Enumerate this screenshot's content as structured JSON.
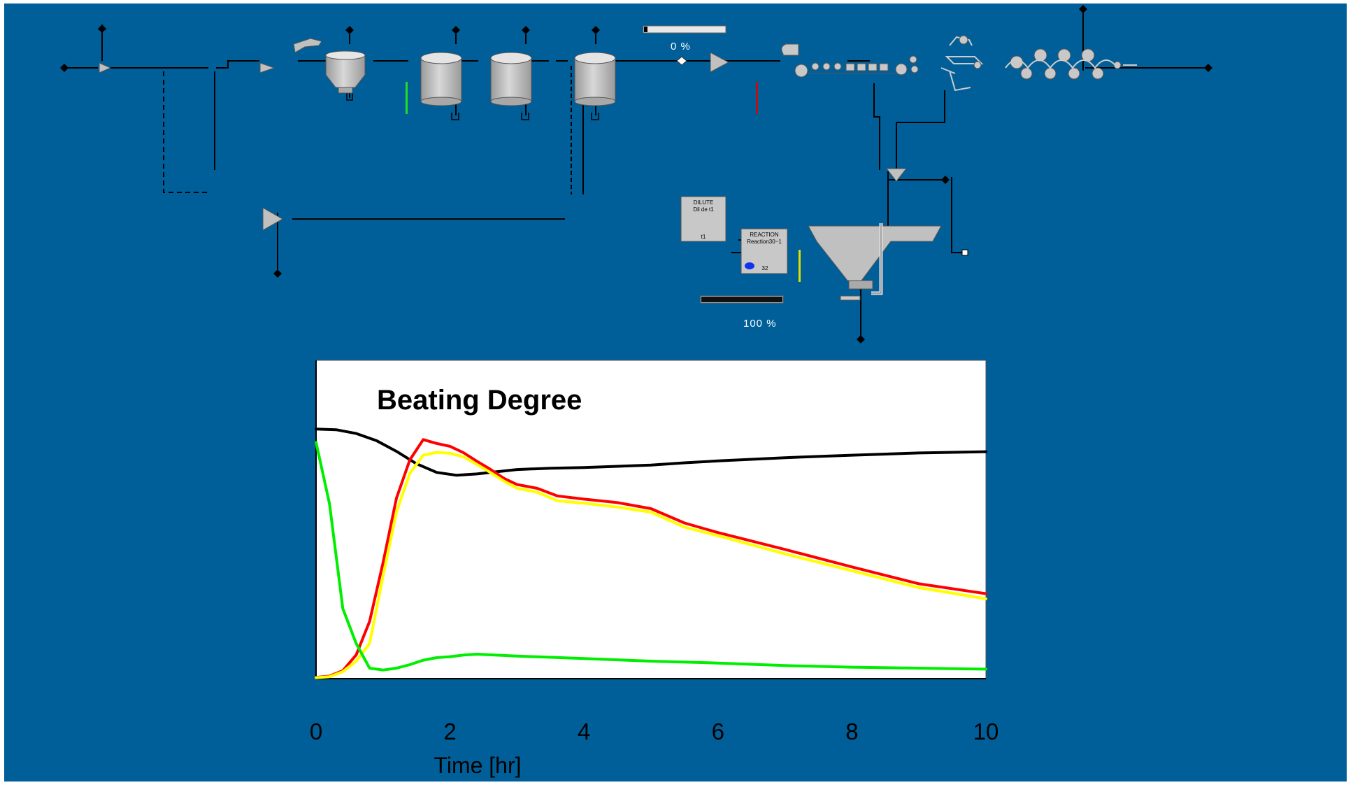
{
  "process": {
    "progress_top": {
      "label": "0 %",
      "value": 0
    },
    "progress_bottom": {
      "label": "100 %",
      "value": 100
    },
    "dilute_box": {
      "line1": "DILUTE",
      "line2": "Dil de t1",
      "tag": "t1"
    },
    "reaction_box": {
      "line1": "REACTION",
      "line2": "Reaction30~1",
      "tag": "32"
    },
    "colors": {
      "background": "#005f99",
      "equipment": "#c0c0c0",
      "stream": "#000000"
    }
  },
  "chart_data": {
    "type": "line",
    "title": "Beating Degree",
    "xlabel": "Time [hr]",
    "ylabel": "",
    "xlim": [
      0,
      10
    ],
    "ylim": [
      0,
      100
    ],
    "xticks": [
      0,
      2,
      4,
      6,
      8,
      10
    ],
    "grid": false,
    "legend": "none",
    "series": [
      {
        "color": "#000000",
        "x": [
          0,
          0.3,
          0.6,
          0.9,
          1.2,
          1.5,
          1.8,
          2.1,
          2.4,
          2.7,
          3.0,
          3.5,
          4.0,
          4.5,
          5.0,
          5.5,
          6.0,
          7.0,
          8.0,
          9.0,
          10.0
        ],
        "y": [
          78.4,
          78.2,
          77.0,
          74.8,
          71.4,
          67.5,
          64.8,
          63.9,
          64.3,
          65.0,
          65.7,
          66.1,
          66.3,
          66.7,
          67.1,
          67.8,
          68.4,
          69.4,
          70.2,
          70.9,
          71.3
        ]
      },
      {
        "color": "#ff0000",
        "x": [
          0,
          0.2,
          0.4,
          0.6,
          0.8,
          1.0,
          1.2,
          1.4,
          1.6,
          1.8,
          2.0,
          2.2,
          2.4,
          2.6,
          2.8,
          3.0,
          3.3,
          3.6,
          4.0,
          4.5,
          5.0,
          5.5,
          6.0,
          7.0,
          8.0,
          9.0,
          10.0
        ],
        "y": [
          0.4,
          0.8,
          2.5,
          7.5,
          18.0,
          36.4,
          56.7,
          68.7,
          75.1,
          73.9,
          73.0,
          71.0,
          68.3,
          65.8,
          63.0,
          61.0,
          59.8,
          57.4,
          56.4,
          55.3,
          53.4,
          48.9,
          45.9,
          40.6,
          35.1,
          29.8,
          26.7
        ]
      },
      {
        "color": "#ffff00",
        "x": [
          0,
          0.2,
          0.4,
          0.6,
          0.8,
          1.0,
          1.2,
          1.4,
          1.6,
          1.8,
          2.0,
          2.2,
          2.4,
          2.6,
          2.8,
          3.0,
          3.3,
          3.6,
          4.0,
          4.5,
          5.0,
          5.5,
          6.0,
          7.0,
          8.0,
          9.0,
          10.0
        ],
        "y": [
          0.3,
          0.6,
          2.2,
          5.5,
          11.1,
          32.2,
          52.3,
          64.5,
          70.2,
          71.1,
          70.8,
          69.7,
          67.3,
          64.8,
          62.1,
          59.8,
          58.6,
          55.9,
          55.1,
          53.9,
          52.3,
          47.6,
          44.9,
          39.2,
          33.9,
          28.6,
          25.1
        ]
      },
      {
        "color": "#00ee00",
        "x": [
          0,
          0.2,
          0.4,
          0.6,
          0.8,
          1.0,
          1.2,
          1.4,
          1.6,
          1.8,
          2.0,
          2.2,
          2.4,
          3.0,
          4.0,
          5.0,
          6.0,
          7.0,
          8.0,
          9.0,
          10.0
        ],
        "y": [
          74.2,
          55.0,
          22.0,
          11.0,
          3.3,
          2.7,
          3.3,
          4.4,
          5.8,
          6.6,
          6.9,
          7.4,
          7.7,
          7.1,
          6.3,
          5.5,
          4.9,
          4.1,
          3.6,
          3.3,
          3.0
        ]
      }
    ]
  }
}
